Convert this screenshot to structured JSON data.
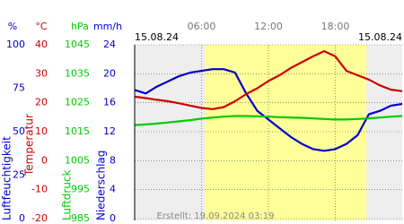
{
  "chart_data": {
    "type": "line",
    "date_left": "15.08.24",
    "date_right": "15.08.24",
    "footer": "Erstellt: 19.09.2024 03:19",
    "xlim": [
      0,
      24
    ],
    "xticks": [
      {
        "value": 6,
        "label": "06:00"
      },
      {
        "value": 12,
        "label": "12:00"
      },
      {
        "value": 18,
        "label": "18:00"
      }
    ],
    "daylight": [
      6.3,
      20.8
    ],
    "daylight_color": "#ffff99",
    "night_color": "#eeeeee",
    "grid": true,
    "axes": [
      {
        "id": "humidity",
        "unit": "%",
        "label": "Luftfeuchtigkeit",
        "color": "#0000cc",
        "ylim": [
          0,
          100
        ],
        "yticks": [
          0,
          25,
          50,
          75,
          100
        ]
      },
      {
        "id": "temperature",
        "unit": "°C",
        "label": "Temperatur",
        "color": "#cc0000",
        "ylim": [
          -20,
          40
        ],
        "yticks": [
          -20,
          -10,
          0,
          10,
          20,
          30,
          40
        ]
      },
      {
        "id": "pressure",
        "unit": "hPa",
        "label": "Luftdruck",
        "color": "#00cc00",
        "ylim": [
          985,
          1045
        ],
        "yticks": [
          985,
          995,
          1005,
          1015,
          1025,
          1035,
          1045
        ]
      },
      {
        "id": "precipitation",
        "unit": "mm/h",
        "label": "Niederschlag",
        "color": "#0000cc",
        "ylim": [
          0,
          24
        ],
        "yticks": [
          0,
          4,
          8,
          12,
          16,
          20,
          24
        ]
      }
    ],
    "x": [
      0,
      1,
      2,
      3,
      4,
      5,
      6,
      7,
      8,
      9,
      10,
      11,
      12,
      13,
      14,
      15,
      16,
      17,
      18,
      19,
      20,
      21,
      22,
      23,
      24
    ],
    "series": [
      {
        "axis": "humidity",
        "color": "#0000cc",
        "values": [
          74,
          72,
          76,
          79,
          82,
          84,
          85,
          86,
          86,
          84,
          72,
          62,
          57,
          52,
          47,
          43,
          40,
          39,
          40,
          43,
          48,
          60,
          62,
          65,
          66
        ]
      },
      {
        "axis": "temperature",
        "color": "#cc0000",
        "values": [
          22.1,
          21.6,
          21,
          20.5,
          19.8,
          19,
          18.2,
          17.8,
          18.5,
          20.5,
          23,
          25,
          27.5,
          29.5,
          32,
          34,
          36,
          37.8,
          36,
          31,
          29.5,
          28,
          26,
          24.5,
          24
        ]
      },
      {
        "axis": "pressure",
        "color": "#00cc00",
        "values": [
          1017.3,
          1017.5,
          1017.8,
          1018.2,
          1018.6,
          1019,
          1019.5,
          1019.9,
          1020.2,
          1020.4,
          1020.4,
          1020.3,
          1020.2,
          1020,
          1019.9,
          1019.8,
          1019.6,
          1019.4,
          1019.2,
          1019.2,
          1019.4,
          1019.6,
          1019.9,
          1020.2,
          1020.4
        ]
      }
    ]
  }
}
